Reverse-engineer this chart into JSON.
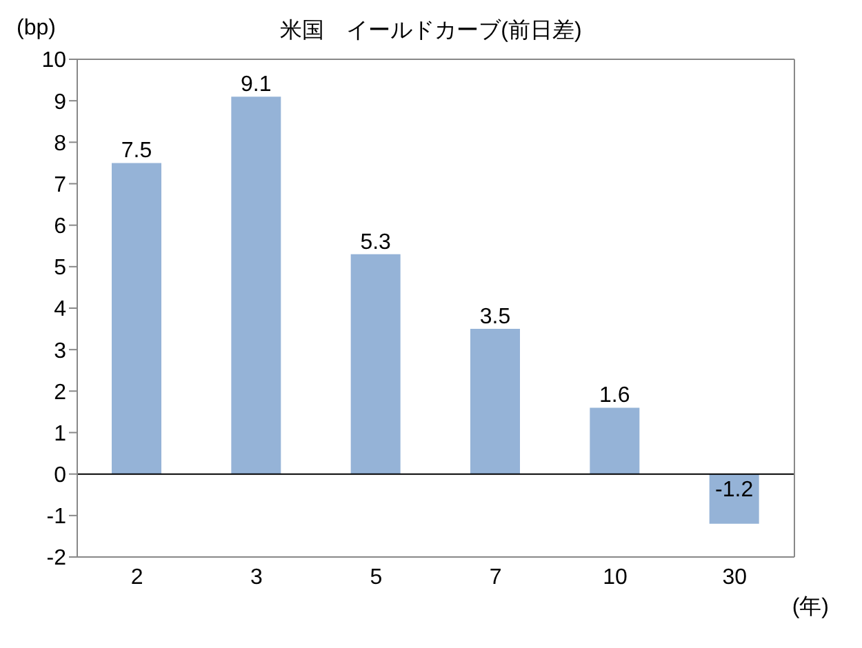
{
  "chart_data": {
    "type": "bar",
    "title": "米国　イールドカーブ(前日差)",
    "ylabel": "(bp)",
    "xlabel": "(年)",
    "categories": [
      "2",
      "3",
      "5",
      "7",
      "10",
      "30"
    ],
    "values": [
      7.5,
      9.1,
      5.3,
      3.5,
      1.6,
      -1.2
    ],
    "color": "#95b3d7",
    "ylim": [
      -2,
      10
    ],
    "yticks": [
      -2,
      -1,
      0,
      1,
      2,
      3,
      4,
      5,
      6,
      7,
      8,
      9,
      10
    ],
    "ref_lines": [
      {
        "axis": "y",
        "value": 0
      }
    ],
    "data_labels": true,
    "grid": false,
    "legend": false
  }
}
